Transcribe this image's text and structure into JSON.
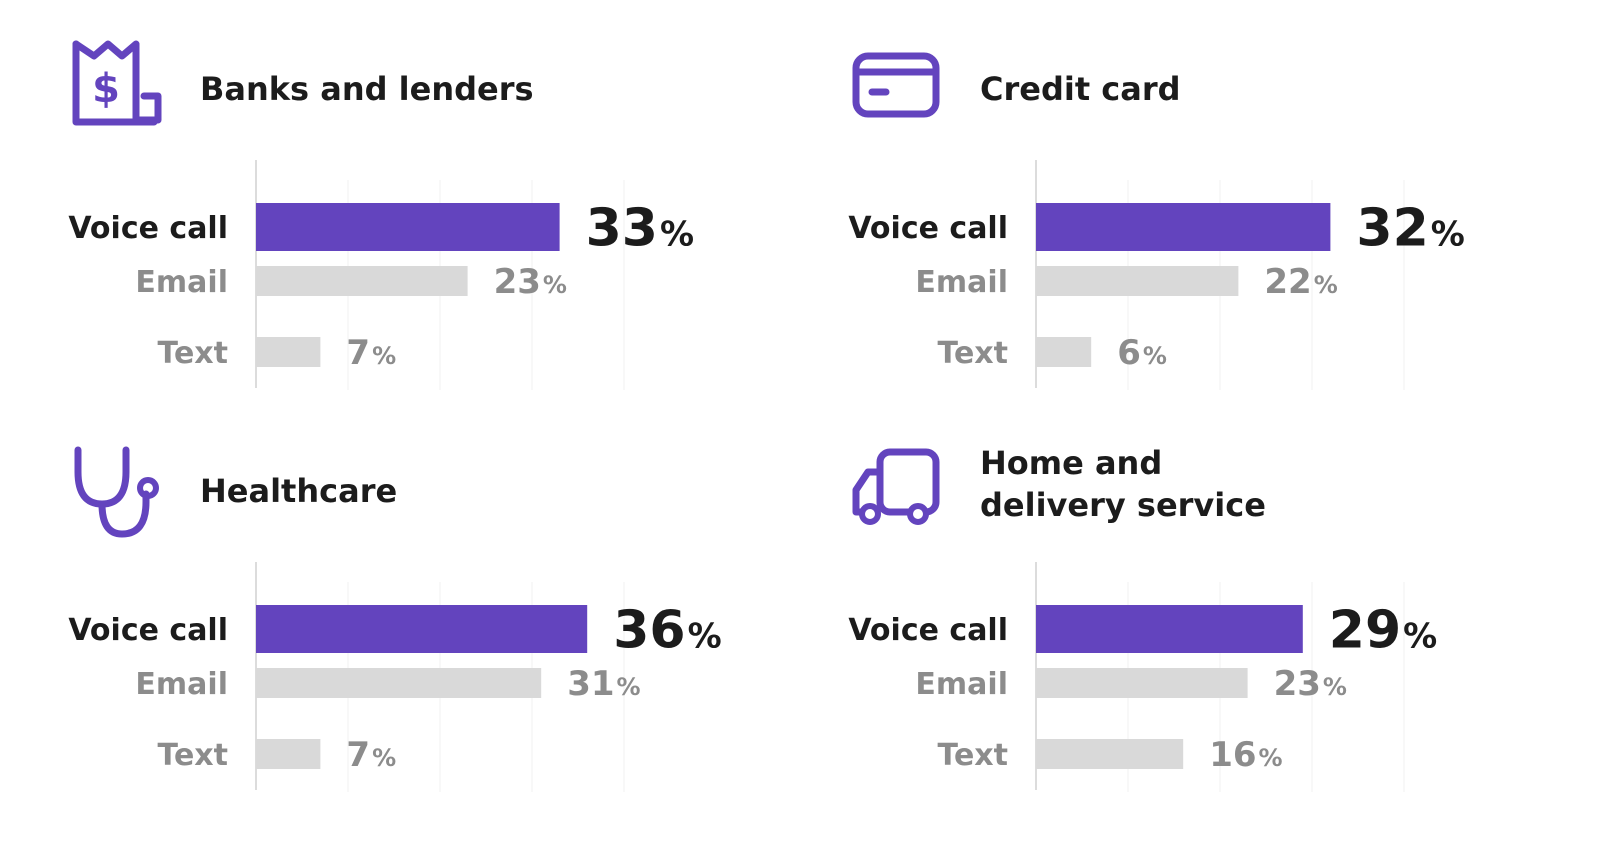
{
  "colors": {
    "primary_bar": "#6344be",
    "secondary_bar": "#d9d9d9",
    "primary_text": "#1c1c1c",
    "secondary_text": "#8c8c8c",
    "icon": "#6344be",
    "grid": "#f0f0f0"
  },
  "chart_data": [
    {
      "type": "bar",
      "orientation": "horizontal",
      "title": "Banks and lenders",
      "icon": "receipt-dollar-icon",
      "categories": [
        "Voice call",
        "Email",
        "Text"
      ],
      "values": [
        33,
        23,
        7
      ],
      "unit": "%",
      "highlight": "Voice call",
      "xlim": [
        0,
        40
      ],
      "grid": true
    },
    {
      "type": "bar",
      "orientation": "horizontal",
      "title": "Credit card",
      "icon": "credit-card-icon",
      "categories": [
        "Voice call",
        "Email",
        "Text"
      ],
      "values": [
        32,
        22,
        6
      ],
      "unit": "%",
      "highlight": "Voice call",
      "xlim": [
        0,
        40
      ],
      "grid": true
    },
    {
      "type": "bar",
      "orientation": "horizontal",
      "title": "Healthcare",
      "icon": "stethoscope-icon",
      "categories": [
        "Voice call",
        "Email",
        "Text"
      ],
      "values": [
        36,
        31,
        7
      ],
      "unit": "%",
      "highlight": "Voice call",
      "xlim": [
        0,
        40
      ],
      "grid": true
    },
    {
      "type": "bar",
      "orientation": "horizontal",
      "title": "Home and\ndelivery service",
      "icon": "delivery-truck-icon",
      "categories": [
        "Voice call",
        "Email",
        "Text"
      ],
      "values": [
        29,
        23,
        16
      ],
      "unit": "%",
      "highlight": "Voice call",
      "xlim": [
        0,
        40
      ],
      "grid": true
    }
  ]
}
